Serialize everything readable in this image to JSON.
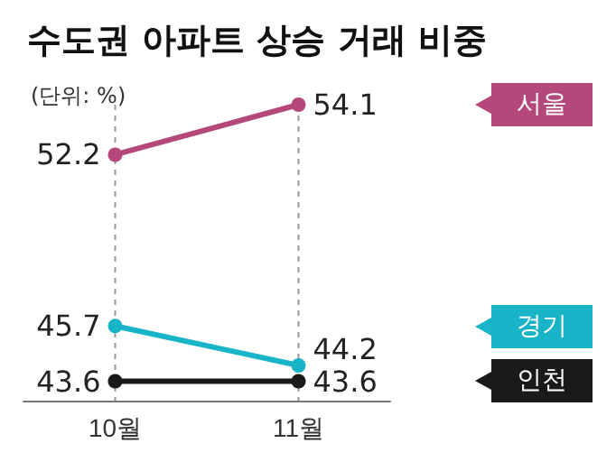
{
  "chart_data": {
    "type": "line",
    "title": "수도권 아파트 상승 거래 비중",
    "subtitle": "(단위: %)",
    "categories": [
      "10월",
      "11월"
    ],
    "series": [
      {
        "name": "서울",
        "color": "#b5487a",
        "values": [
          52.2,
          54.1
        ]
      },
      {
        "name": "경기",
        "color": "#1ab4c8",
        "values": [
          45.7,
          44.2
        ]
      },
      {
        "name": "인천",
        "color": "#1a1a1a",
        "values": [
          43.6,
          43.6
        ]
      }
    ],
    "data_labels": true,
    "marker": "circle",
    "line_style": "solid",
    "grid": "x",
    "legend": "right"
  }
}
